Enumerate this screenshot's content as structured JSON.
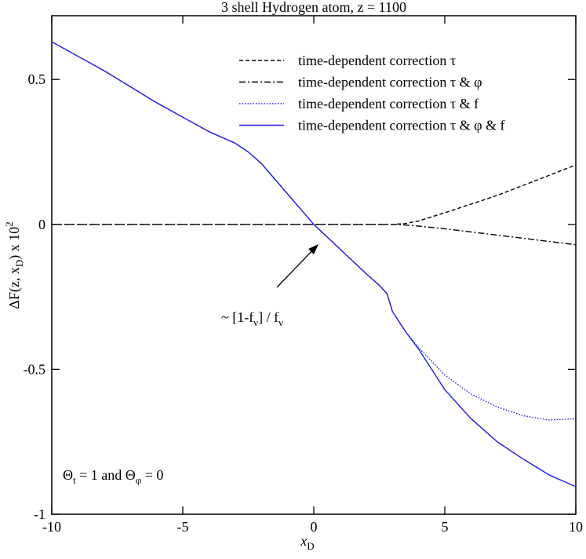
{
  "chart_data": {
    "type": "line",
    "title": "3 shell Hydrogen atom, z = 1100",
    "xlabel": [
      "x",
      "D"
    ],
    "ylabel": [
      "ΔF(z, x",
      "D",
      ") x 10",
      "2"
    ],
    "x": [
      -10,
      -9,
      -8,
      -7,
      -6,
      -5,
      -4,
      -3,
      -2.5,
      -2,
      -1,
      0,
      1,
      2,
      2.5,
      2.8,
      3,
      3.5,
      4,
      5,
      6,
      7,
      8,
      9,
      10
    ],
    "series": [
      {
        "name": "time-dependent correction τ",
        "color": "#000000",
        "dash": "5,3",
        "values": [
          0,
          0,
          0,
          0,
          0,
          0,
          0,
          0,
          0,
          0,
          0,
          0,
          0,
          0,
          0,
          0,
          0,
          0.003,
          0.012,
          0.04,
          0.07,
          0.1,
          0.135,
          0.17,
          0.205
        ]
      },
      {
        "name": "time-dependent correction τ & φ",
        "color": "#000000",
        "dash": "8,3,2,3",
        "values": [
          0,
          0,
          0,
          0,
          0,
          0,
          0,
          0,
          0,
          0,
          0,
          0,
          0,
          0,
          0,
          0,
          0,
          -0.002,
          -0.006,
          -0.015,
          -0.026,
          -0.037,
          -0.048,
          -0.059,
          -0.07
        ]
      },
      {
        "name": "time-dependent correction τ & f",
        "color": "#1f1fe0",
        "dash": "1.5,2",
        "values": [
          0.63,
          0.58,
          0.53,
          0.475,
          0.42,
          0.37,
          0.32,
          0.28,
          0.25,
          0.21,
          0.105,
          0,
          -0.085,
          -0.17,
          -0.21,
          -0.24,
          -0.3,
          -0.37,
          -0.425,
          -0.52,
          -0.585,
          -0.63,
          -0.66,
          -0.675,
          -0.67
        ]
      },
      {
        "name": "time-dependent correction τ & φ & f",
        "color": "#1f1fe0",
        "dash": "none",
        "values": [
          0.63,
          0.58,
          0.53,
          0.475,
          0.42,
          0.37,
          0.32,
          0.28,
          0.25,
          0.21,
          0.105,
          0,
          -0.085,
          -0.17,
          -0.21,
          -0.24,
          -0.3,
          -0.37,
          -0.43,
          -0.57,
          -0.67,
          -0.75,
          -0.81,
          -0.865,
          -0.905
        ]
      }
    ],
    "xlim": [
      -10,
      10
    ],
    "xticks": [
      -10,
      -5,
      0,
      5,
      10
    ],
    "ylim": [
      -1,
      0.72
    ],
    "yticks": [
      -1,
      -0.5,
      0,
      0.5
    ],
    "annotations": [
      [
        "~ [1-f",
        "ν",
        "] / f",
        "ν"
      ],
      [
        "Θ",
        "t",
        " = 1 and Θ",
        "φ",
        " = 0"
      ]
    ],
    "legend": "upper right"
  }
}
